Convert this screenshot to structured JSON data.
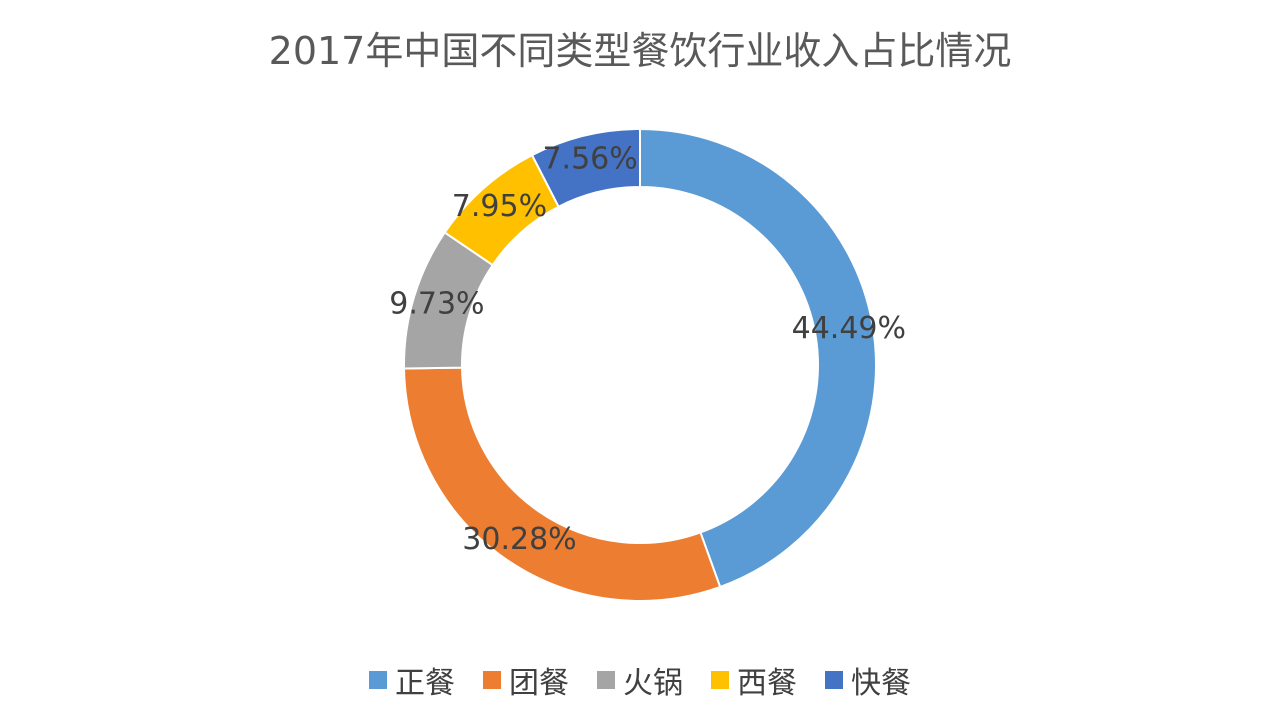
{
  "chart_data": {
    "type": "pie",
    "variant": "donut",
    "title": "2017年中国不同类型餐饮行业收入占比情况",
    "categories": [
      "正餐",
      "团餐",
      "火锅",
      "西餐",
      "快餐"
    ],
    "values": [
      44.49,
      30.28,
      9.73,
      7.95,
      7.56
    ],
    "data_labels": [
      "44.49%",
      "30.28%",
      "9.73%",
      "7.95%",
      "7.56%"
    ],
    "colors": [
      "#5B9BD5",
      "#ED7D31",
      "#A5A5A5",
      "#FFC000",
      "#4472C4"
    ],
    "legend_position": "bottom"
  }
}
